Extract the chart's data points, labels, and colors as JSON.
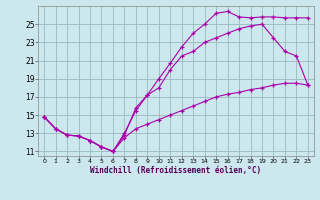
{
  "xlabel": "Windchill (Refroidissement éolien,°C)",
  "background_color": "#cce8ee",
  "grid_color": "#99bbbb",
  "line_color": "#aa00aa",
  "ylim": [
    10.5,
    27.0
  ],
  "xlim": [
    -0.5,
    23.5
  ],
  "yticks": [
    11,
    13,
    15,
    17,
    19,
    21,
    23,
    25
  ],
  "xticks": [
    0,
    1,
    2,
    3,
    4,
    5,
    6,
    7,
    8,
    9,
    10,
    11,
    12,
    13,
    14,
    15,
    16,
    17,
    18,
    19,
    20,
    21,
    22,
    23
  ],
  "line1_x": [
    0,
    1,
    2,
    3,
    4,
    5,
    6,
    7,
    8,
    9,
    10,
    11,
    12,
    13,
    14,
    15,
    16,
    17,
    18,
    19,
    20,
    21,
    22,
    23
  ],
  "line1_y": [
    14.8,
    13.5,
    12.8,
    12.7,
    12.2,
    11.5,
    11.0,
    13.0,
    15.5,
    17.2,
    19.0,
    20.7,
    22.5,
    24.0,
    25.0,
    26.2,
    26.4,
    25.8,
    25.7,
    25.8,
    25.8,
    25.7,
    25.7,
    25.7
  ],
  "line2_x": [
    0,
    1,
    2,
    3,
    4,
    5,
    6,
    7,
    8,
    9,
    10,
    11,
    12,
    13,
    14,
    15,
    16,
    17,
    18,
    19,
    20,
    21,
    22,
    23
  ],
  "line2_y": [
    14.8,
    13.5,
    12.8,
    12.7,
    12.2,
    11.5,
    11.0,
    12.5,
    13.5,
    14.0,
    14.5,
    15.0,
    15.5,
    16.0,
    16.5,
    17.0,
    17.3,
    17.5,
    17.8,
    18.0,
    18.3,
    18.5,
    18.5,
    18.3
  ],
  "line3_x": [
    0,
    1,
    2,
    3,
    4,
    5,
    6,
    7,
    8,
    9,
    10,
    11,
    12,
    13,
    14,
    15,
    16,
    17,
    18,
    19,
    20,
    21,
    22,
    23
  ],
  "line3_y": [
    14.8,
    13.5,
    12.8,
    12.7,
    12.2,
    11.5,
    11.0,
    12.8,
    15.8,
    17.2,
    18.0,
    20.0,
    21.5,
    22.0,
    23.0,
    23.5,
    24.0,
    24.5,
    24.8,
    25.0,
    23.5,
    22.0,
    21.5,
    18.3
  ]
}
